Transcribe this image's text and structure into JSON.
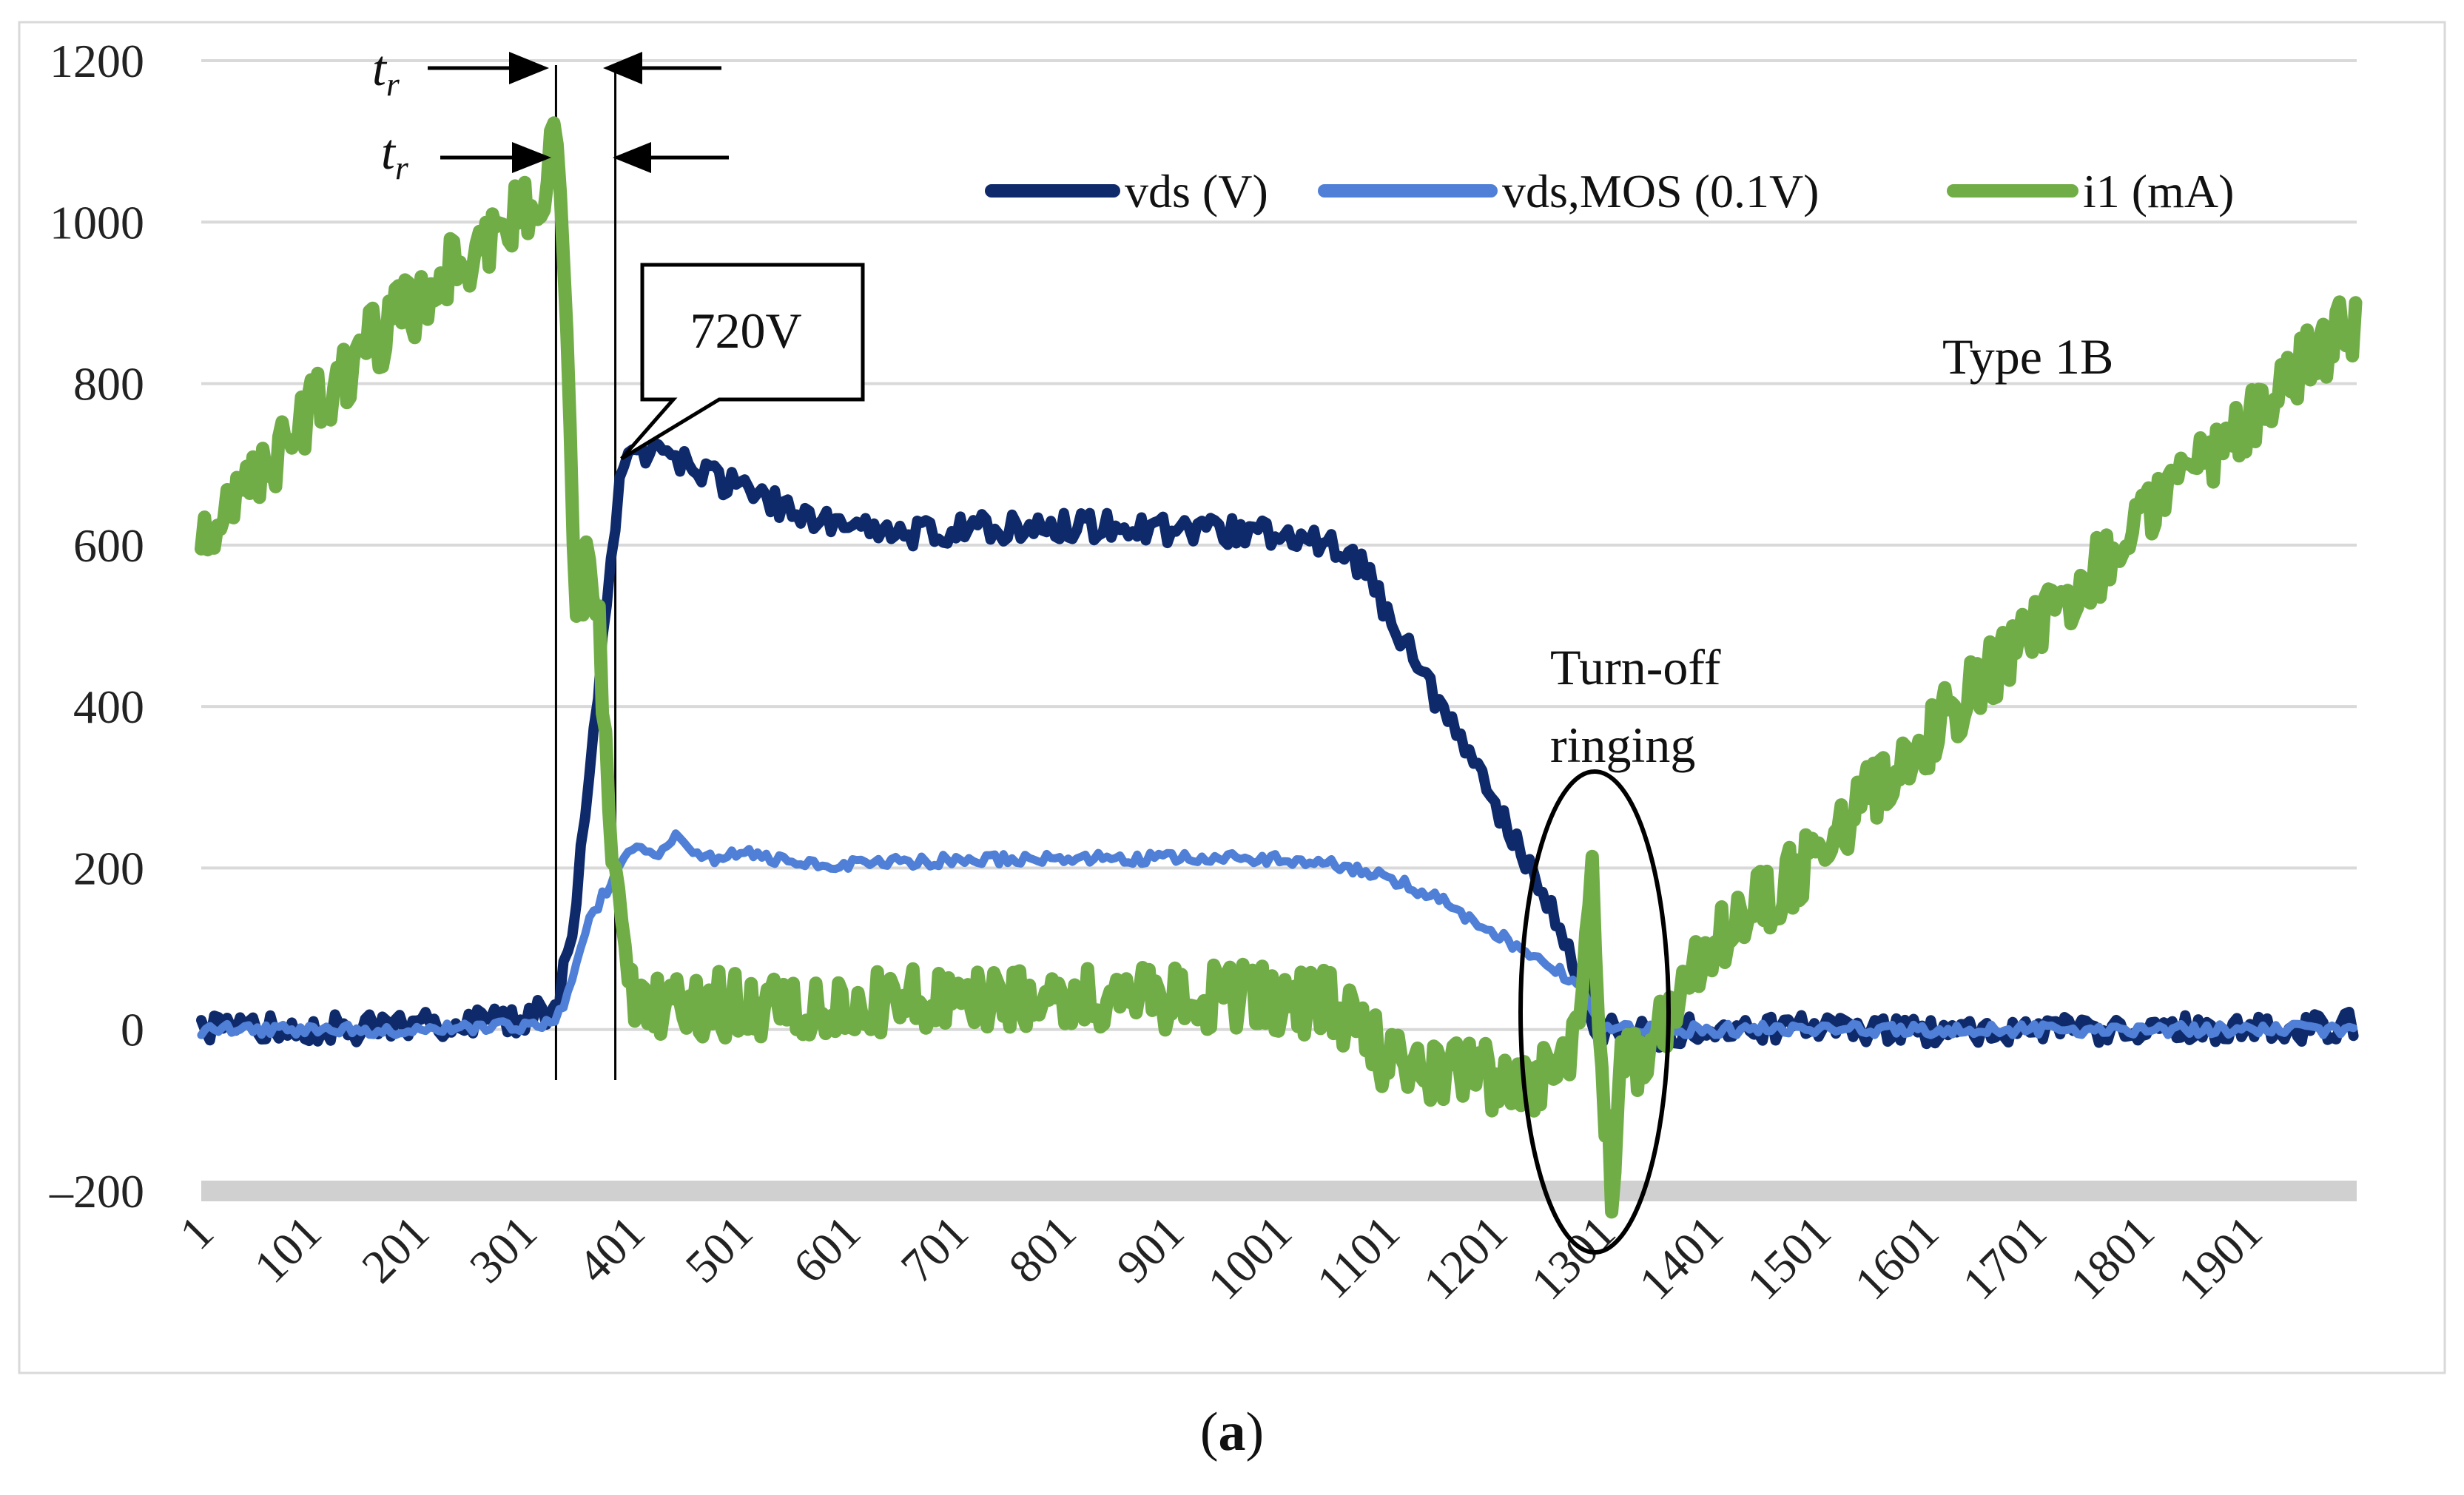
{
  "chart_data": {
    "type": "line",
    "title": "",
    "xlabel": "",
    "ylabel": "",
    "ylim": [
      -200,
      1200
    ],
    "y_ticks": [
      -200,
      0,
      200,
      400,
      600,
      800,
      1000,
      1200
    ],
    "y_tick_labels": [
      "–200",
      "0",
      "200",
      "400",
      "600",
      "800",
      "1000",
      "1200"
    ],
    "x_range": [
      1,
      2000
    ],
    "x_ticks": [
      1,
      101,
      201,
      301,
      401,
      501,
      601,
      701,
      801,
      901,
      1001,
      1101,
      1201,
      1301,
      1401,
      1501,
      1601,
      1701,
      1801,
      1901
    ],
    "grid": "horizontal",
    "legend_position": "top-right",
    "colors": {
      "vds": "#0e2a6b",
      "vds_mos": "#4f7fd6",
      "i1": "#70ad47",
      "grid": "#d9d9d9",
      "zero_band": "#d0d0d0"
    },
    "series": [
      {
        "name": "vds (V)",
        "key": "vds",
        "x": [
          1,
          100,
          200,
          300,
          330,
          345,
          360,
          375,
          390,
          400,
          450,
          500,
          550,
          600,
          650,
          700,
          800,
          900,
          1000,
          1050,
          1080,
          1100,
          1150,
          1200,
          1250,
          1270,
          1285,
          1290,
          1300,
          1350,
          1400,
          1500,
          1700,
          1900,
          2000
        ],
        "values": [
          0,
          0,
          5,
          10,
          30,
          120,
          300,
          500,
          680,
          720,
          700,
          670,
          640,
          620,
          610,
          620,
          625,
          620,
          615,
          600,
          570,
          520,
          400,
          280,
          160,
          100,
          50,
          20,
          0,
          -5,
          0,
          0,
          0,
          0,
          5
        ]
      },
      {
        "name": "vds,MOS (0.1V)",
        "key": "vds_mos",
        "x": [
          1,
          100,
          200,
          300,
          330,
          345,
          360,
          375,
          390,
          400,
          420,
          440,
          470,
          500,
          550,
          600,
          700,
          800,
          900,
          1000,
          1050,
          1100,
          1150,
          1200,
          1250,
          1280,
          1290,
          1300,
          1400,
          1600,
          1800,
          2000
        ],
        "values": [
          0,
          0,
          0,
          5,
          10,
          60,
          130,
          170,
          200,
          230,
          215,
          240,
          210,
          220,
          205,
          205,
          210,
          212,
          212,
          212,
          205,
          190,
          160,
          120,
          80,
          55,
          20,
          0,
          0,
          0,
          0,
          0
        ]
      },
      {
        "name": "i1 (mA)",
        "key": "i1",
        "x": [
          1,
          50,
          100,
          150,
          200,
          250,
          300,
          320,
          330,
          335,
          340,
          345,
          350,
          355,
          360,
          370,
          380,
          390,
          400,
          410,
          500,
          600,
          700,
          800,
          900,
          1000,
          1050,
          1080,
          1100,
          1150,
          1200,
          1250,
          1270,
          1280,
          1290,
          1300,
          1310,
          1320,
          1330,
          1350,
          1370,
          1400,
          1450,
          1500,
          1550,
          1600,
          1650,
          1700,
          1750,
          1800,
          1850,
          1900,
          1950,
          2000
        ],
        "values": [
          600,
          680,
          760,
          840,
          900,
          960,
          1020,
          1050,
          1120,
          1050,
          850,
          650,
          500,
          550,
          580,
          500,
          250,
          150,
          50,
          30,
          30,
          30,
          40,
          40,
          40,
          40,
          30,
          0,
          -40,
          -50,
          -60,
          -60,
          -40,
          60,
          200,
          -50,
          -200,
          -20,
          -40,
          -20,
          50,
          100,
          160,
          220,
          290,
          360,
          430,
          500,
          560,
          620,
          690,
          760,
          820,
          880
        ]
      }
    ],
    "annotations": [
      {
        "key": "tr1",
        "label": "t",
        "sub": "r",
        "x": 315
      },
      {
        "key": "tr2",
        "label": "t",
        "sub": "r",
        "x": 330
      },
      {
        "key": "peak",
        "label": "720V",
        "x": 395,
        "y": 720
      },
      {
        "key": "type",
        "label": "Type 1B"
      },
      {
        "key": "ringing_line1",
        "label": "Turn-off"
      },
      {
        "key": "ringing_line2",
        "label": "ringing"
      }
    ],
    "vertical_markers": [
      330,
      385
    ],
    "caption_open": "(",
    "caption_bold": "a",
    "caption_close": ")"
  }
}
